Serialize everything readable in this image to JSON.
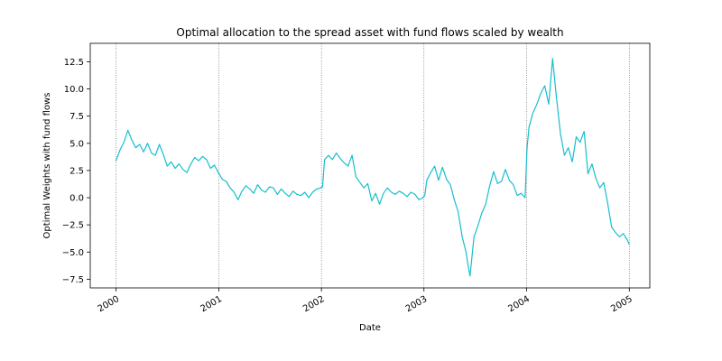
{
  "chart_data": {
    "type": "line",
    "title": "Optimal allocation to the spread asset with fund flows scaled by wealth",
    "xlabel": "Date",
    "ylabel": "Optimal Weights with fund flows",
    "xlim": [
      "1999-10-01",
      "2005-03-15"
    ],
    "ylim": [
      -8.3,
      14.2
    ],
    "xticks": [
      "2000",
      "2001",
      "2002",
      "2003",
      "2004",
      "2005"
    ],
    "xtick_dates": [
      "2000-01-01",
      "2001-01-01",
      "2002-01-01",
      "2003-01-01",
      "2004-01-01",
      "2005-01-01"
    ],
    "yticks": [
      -7.5,
      -5.0,
      -2.5,
      0.0,
      2.5,
      5.0,
      7.5,
      10.0,
      12.5
    ],
    "ytick_labels": [
      "−7.5",
      "−5.0",
      "−2.5",
      "0.0",
      "2.5",
      "5.0",
      "7.5",
      "10.0",
      "12.5"
    ],
    "grid": "vertical dotted lines at year ticks",
    "legend": "none",
    "line_color": "#17becf",
    "series": [
      {
        "x": [
          "2000-01-01",
          "2000-01-15",
          "2000-01-29",
          "2000-02-12",
          "2000-02-26",
          "2000-03-11",
          "2000-03-25",
          "2000-04-08",
          "2000-04-22",
          "2000-05-06",
          "2000-05-20",
          "2000-06-03",
          "2000-06-17",
          "2000-07-01",
          "2000-07-15",
          "2000-07-29",
          "2000-08-12",
          "2000-08-26",
          "2000-09-09",
          "2000-09-23",
          "2000-10-07",
          "2000-10-21",
          "2000-11-04",
          "2000-11-18",
          "2000-12-02",
          "2000-12-16",
          "2000-12-30",
          "2001-01-13",
          "2001-01-27",
          "2001-02-10",
          "2001-02-24",
          "2001-03-10",
          "2001-03-24",
          "2001-04-07",
          "2001-04-21",
          "2001-05-05",
          "2001-05-19",
          "2001-06-02",
          "2001-06-16",
          "2001-06-30",
          "2001-07-14",
          "2001-07-28",
          "2001-08-11",
          "2001-08-25",
          "2001-09-08",
          "2001-09-22",
          "2001-10-06",
          "2001-10-20",
          "2001-11-03",
          "2001-11-17",
          "2001-12-01",
          "2001-12-15",
          "2001-12-29",
          "2002-01-05",
          "2002-01-12",
          "2002-01-26",
          "2002-02-09",
          "2002-02-23",
          "2002-03-09",
          "2002-03-23",
          "2002-04-06",
          "2002-04-20",
          "2002-05-04",
          "2002-05-18",
          "2002-06-01",
          "2002-06-15",
          "2002-06-29",
          "2002-07-13",
          "2002-07-27",
          "2002-08-10",
          "2002-08-24",
          "2002-09-07",
          "2002-09-21",
          "2002-10-05",
          "2002-10-19",
          "2002-11-02",
          "2002-11-16",
          "2002-11-30",
          "2002-12-14",
          "2002-12-28",
          "2003-01-04",
          "2003-01-11",
          "2003-01-25",
          "2003-02-08",
          "2003-02-22",
          "2003-03-08",
          "2003-03-22",
          "2003-04-05",
          "2003-04-19",
          "2003-05-03",
          "2003-05-17",
          "2003-05-31",
          "2003-06-07",
          "2003-06-14",
          "2003-06-28",
          "2003-07-12",
          "2003-07-26",
          "2003-08-09",
          "2003-08-23",
          "2003-09-06",
          "2003-09-20",
          "2003-10-04",
          "2003-10-18",
          "2003-11-01",
          "2003-11-15",
          "2003-11-29",
          "2003-12-13",
          "2003-12-27",
          "2004-01-03",
          "2004-01-10",
          "2004-01-24",
          "2004-02-07",
          "2004-02-21",
          "2004-03-06",
          "2004-03-20",
          "2004-04-03",
          "2004-04-17",
          "2004-05-01",
          "2004-05-15",
          "2004-05-29",
          "2004-06-12",
          "2004-06-26",
          "2004-07-10",
          "2004-07-24",
          "2004-08-07",
          "2004-08-21",
          "2004-09-04",
          "2004-09-18",
          "2004-10-02",
          "2004-10-16",
          "2004-10-30",
          "2004-11-13",
          "2004-11-27",
          "2004-12-11",
          "2004-12-25",
          "2005-01-01"
        ],
        "y": [
          3.4,
          4.4,
          5.1,
          6.2,
          5.3,
          4.6,
          4.9,
          4.2,
          5.0,
          4.1,
          3.9,
          4.9,
          4.0,
          2.9,
          3.3,
          2.7,
          3.1,
          2.6,
          2.3,
          3.1,
          3.7,
          3.4,
          3.8,
          3.5,
          2.7,
          3.0,
          2.3,
          1.7,
          1.5,
          0.9,
          0.5,
          -0.2,
          0.6,
          1.1,
          0.8,
          0.4,
          1.2,
          0.7,
          0.5,
          1.0,
          0.9,
          0.3,
          0.8,
          0.4,
          0.1,
          0.6,
          0.3,
          0.2,
          0.5,
          0.0,
          0.5,
          0.8,
          0.9,
          1.0,
          3.5,
          3.9,
          3.5,
          4.1,
          3.6,
          3.2,
          2.9,
          3.9,
          1.9,
          1.4,
          0.9,
          1.3,
          -0.3,
          0.4,
          -0.6,
          0.4,
          0.9,
          0.5,
          0.3,
          0.6,
          0.4,
          0.1,
          0.5,
          0.3,
          -0.2,
          0.0,
          0.2,
          1.6,
          2.3,
          2.9,
          1.6,
          2.8,
          1.7,
          1.2,
          -0.2,
          -1.3,
          -3.6,
          -5.0,
          -6.2,
          -7.2,
          -3.6,
          -2.6,
          -1.4,
          -0.6,
          1.1,
          2.4,
          1.3,
          1.5,
          2.6,
          1.6,
          1.2,
          0.2,
          0.4,
          0.0,
          4.6,
          6.5,
          7.8,
          8.6,
          9.6,
          10.3,
          8.6,
          12.8,
          9.1,
          5.9,
          3.9,
          4.6,
          3.3,
          5.6,
          5.1,
          6.1,
          2.2,
          3.1,
          1.8,
          0.9,
          1.4,
          -0.5,
          -2.7,
          -3.2,
          -3.6,
          -3.3,
          -3.9,
          -4.3
        ]
      }
    ]
  }
}
